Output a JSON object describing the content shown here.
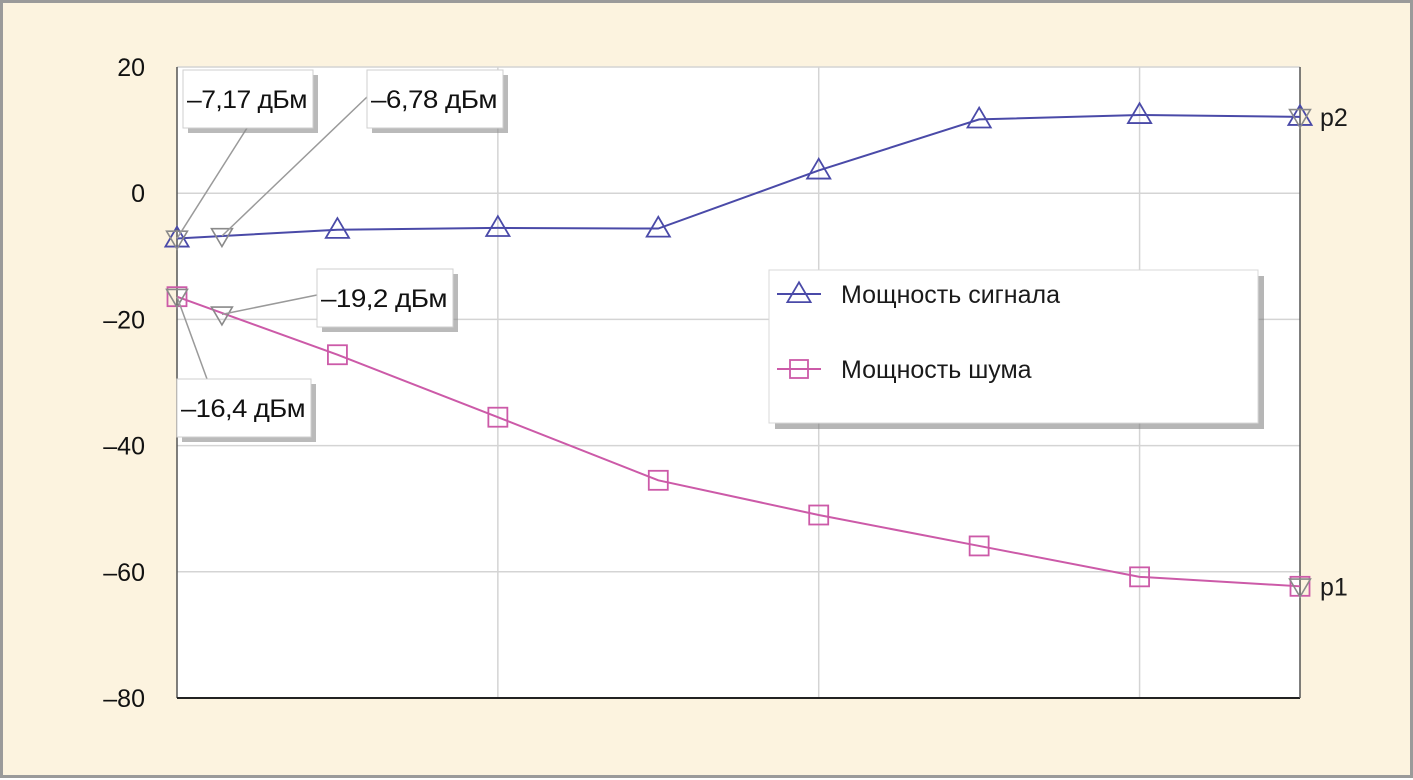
{
  "chart_data": {
    "type": "line",
    "title": "",
    "xlabel": "",
    "ylabel": "",
    "ylim": [
      -80,
      20
    ],
    "xlim": [
      0,
      7
    ],
    "y_ticks": [
      "20",
      "0",
      "–20",
      "–40",
      "–60",
      "–80"
    ],
    "grid": true,
    "legend": "right-middle",
    "colors": {
      "background": "#fcf3df",
      "plot_area": "#ffffff",
      "signal": "#4a4aa8",
      "noise": "#cc5aa8",
      "marker": "#8a8a8a",
      "grid": "#d4d4d4"
    },
    "series": [
      {
        "name": "Мощность сигнала",
        "marker": "triangle-up",
        "x": [
          0,
          1,
          2,
          3,
          4,
          5,
          6,
          7
        ],
        "values": [
          -7.17,
          -5.8,
          -5.5,
          -5.6,
          3.6,
          11.7,
          12.4,
          12.1
        ]
      },
      {
        "name": "Мощность шума",
        "marker": "square",
        "x": [
          0,
          1,
          2,
          3,
          4,
          5,
          6,
          7
        ],
        "values": [
          -16.4,
          -25.6,
          -35.5,
          -45.5,
          -51.0,
          -55.9,
          -60.8,
          -62.3
        ]
      }
    ],
    "markers": [
      {
        "label": "p2",
        "x": 7,
        "y": 12.1
      },
      {
        "label": "p1",
        "x": 7,
        "y": -62.3
      },
      {
        "x": 0,
        "y": -7.17
      },
      {
        "x": 0.28,
        "y": -6.78
      },
      {
        "x": 0,
        "y": -16.4
      },
      {
        "x": 0.28,
        "y": -19.2
      }
    ],
    "annotations": [
      {
        "text": "–7,17 дБм",
        "x": 0,
        "y": -7.17
      },
      {
        "text": "–6,78 дБм",
        "x": 0.28,
        "y": -6.78
      },
      {
        "text": "–19,2 дБм",
        "x": 0.28,
        "y": -19.2
      },
      {
        "text": "–16,4 дБм",
        "x": 0,
        "y": -16.4
      }
    ]
  }
}
